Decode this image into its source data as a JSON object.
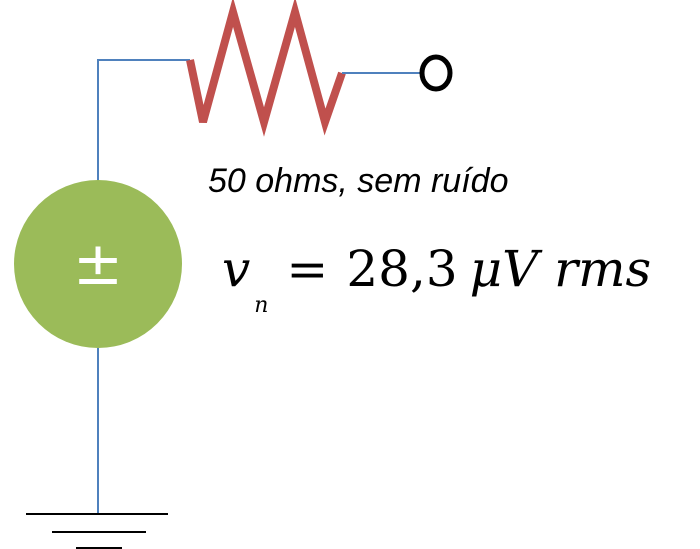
{
  "caption": "50 ohms, sem ruído",
  "equation": {
    "variable": "v",
    "subscript": "n",
    "operator": "=",
    "value": "28,3",
    "unit": "μV",
    "suffix": "rms"
  },
  "source": {
    "symbol": "±",
    "fill_color": "#9bbb59"
  },
  "colors": {
    "wire": "#4f81bd",
    "resistor": "#c0504d",
    "ground": "#000000"
  }
}
